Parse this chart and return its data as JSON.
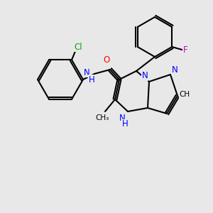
{
  "bg_color": "#e8e8e8",
  "bond_color": "#000000",
  "bond_lw": 1.5,
  "atom_colors": {
    "N": "#0000FF",
    "O": "#FF0000",
    "Cl": "#00AA00",
    "F": "#CC00CC",
    "C": "#000000",
    "H": "#000000"
  },
  "font_size": 8.5
}
